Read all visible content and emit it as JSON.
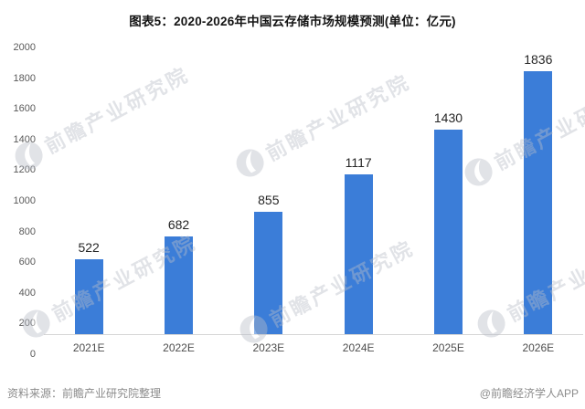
{
  "title": "图表5：2020-2026年中国云存储市场规模预测(单位：亿元)",
  "chart_data": {
    "type": "bar",
    "title": "图表5：2020-2026年中国云存储市场规模预测(单位：亿元)",
    "categories": [
      "2021E",
      "2022E",
      "2023E",
      "2024E",
      "2025E",
      "2026E"
    ],
    "values": [
      522,
      682,
      855,
      1117,
      1430,
      1836
    ],
    "unit": "亿元",
    "xlabel": "",
    "ylabel": "",
    "ylim": [
      0,
      2000
    ],
    "ytick_step": 200,
    "yticks": [
      0,
      200,
      400,
      600,
      800,
      1000,
      1200,
      1400,
      1600,
      1800,
      2000
    ],
    "grid": false,
    "legend": false,
    "data_labels": true,
    "bar_color": "#3b7dd8",
    "axis_line_color": "#d6d6d6"
  },
  "footer": {
    "source": "资料来源：前瞻产业研究院整理",
    "credit": "@前瞻经济学人APP"
  },
  "watermark": {
    "text": "前瞻产业研究院",
    "logo": "qianzhan-swoosh-logo"
  }
}
